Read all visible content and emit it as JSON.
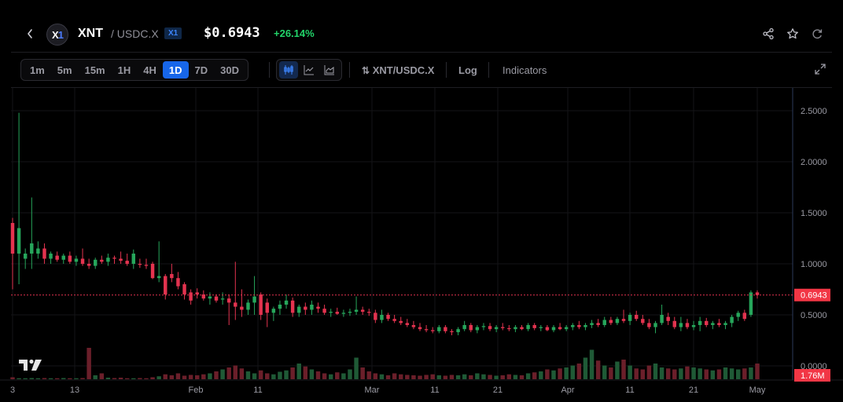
{
  "header": {
    "symbol": "XNT",
    "pair": "/ USDC.X",
    "chain_badge": "X1",
    "logo_text": "X",
    "logo_text_accent": "1",
    "price": "$0.6943",
    "change": "+26.14%",
    "icons": [
      "back-chevron-icon",
      "share-icon",
      "star-icon",
      "refresh-icon"
    ]
  },
  "toolbar": {
    "timeframes": [
      "1m",
      "5m",
      "15m",
      "1H",
      "4H",
      "1D",
      "7D",
      "30D"
    ],
    "active_timeframe": "1D",
    "chart_types": [
      "candles-icon",
      "line-icon",
      "area-icon"
    ],
    "pair_toggle": "XNT/USDC.X",
    "log_label": "Log",
    "indicators_label": "Indicators"
  },
  "colors": {
    "up": "#26a65b",
    "down": "#e3334f",
    "vol_up": "#1f5a36",
    "vol_down": "#6b1f2a",
    "accent": "#1766ea",
    "price_line": "#e3334f",
    "price_label_bg": "#f23645"
  },
  "chart_data": {
    "type": "candlestick",
    "title": "",
    "y_axis_labels": [
      "2.5000",
      "2.0000",
      "1.5000",
      "1.0000",
      "0.5000",
      "0.0000"
    ],
    "y_range": [
      0,
      2.7
    ],
    "x_axis_labels": [
      "3",
      "13",
      "Feb",
      "11",
      "Mar",
      "11",
      "21",
      "Apr",
      "11",
      "21",
      "May"
    ],
    "current_price_label": "0.6943",
    "current_price": 0.6943,
    "volume_label": "1.76M",
    "ohlc": [
      [
        1.4,
        1.45,
        0.75,
        1.1
      ],
      [
        1.1,
        2.48,
        0.8,
        1.35
      ],
      [
        1.05,
        1.15,
        0.95,
        1.1
      ],
      [
        1.1,
        1.65,
        0.95,
        1.2
      ],
      [
        1.1,
        1.22,
        1.05,
        1.15
      ],
      [
        1.15,
        1.2,
        1.0,
        1.05
      ],
      [
        1.05,
        1.12,
        1.0,
        1.1
      ],
      [
        1.08,
        1.12,
        1.02,
        1.04
      ],
      [
        1.04,
        1.1,
        1.0,
        1.08
      ],
      [
        1.08,
        1.12,
        1.0,
        1.02
      ],
      [
        1.02,
        1.08,
        0.98,
        1.05
      ],
      [
        1.05,
        1.15,
        0.98,
        1.0
      ],
      [
        1.0,
        1.05,
        0.95,
        0.98
      ],
      [
        0.98,
        1.06,
        0.95,
        1.04
      ],
      [
        1.04,
        1.08,
        1.0,
        1.02
      ],
      [
        1.02,
        1.1,
        0.98,
        1.06
      ],
      [
        1.06,
        1.08,
        1.0,
        1.05
      ],
      [
        1.05,
        1.12,
        1.0,
        1.03
      ],
      [
        1.03,
        1.1,
        0.98,
        1.0
      ],
      [
        1.0,
        1.14,
        0.95,
        1.1
      ],
      [
        1.0,
        1.05,
        0.96,
        0.99
      ],
      [
        0.99,
        1.05,
        0.95,
        0.98
      ],
      [
        1.0,
        1.02,
        0.85,
        0.86
      ],
      [
        0.86,
        1.22,
        0.82,
        0.88
      ],
      [
        0.88,
        0.9,
        0.65,
        0.7
      ],
      [
        0.9,
        1.0,
        0.82,
        0.86
      ],
      [
        0.86,
        0.92,
        0.75,
        0.78
      ],
      [
        0.8,
        0.82,
        0.65,
        0.7
      ],
      [
        0.72,
        0.75,
        0.6,
        0.64
      ],
      [
        0.72,
        0.76,
        0.66,
        0.7
      ],
      [
        0.7,
        0.74,
        0.64,
        0.66
      ],
      [
        0.66,
        0.72,
        0.6,
        0.68
      ],
      [
        0.68,
        0.7,
        0.62,
        0.64
      ],
      [
        0.65,
        0.72,
        0.6,
        0.66
      ],
      [
        0.66,
        0.7,
        0.4,
        0.62
      ],
      [
        0.62,
        1.02,
        0.45,
        0.58
      ],
      [
        0.58,
        0.75,
        0.48,
        0.55
      ],
      [
        0.55,
        0.65,
        0.5,
        0.62
      ],
      [
        0.62,
        0.88,
        0.5,
        0.68
      ],
      [
        0.7,
        0.72,
        0.45,
        0.5
      ],
      [
        0.62,
        0.66,
        0.38,
        0.52
      ],
      [
        0.52,
        0.58,
        0.44,
        0.56
      ],
      [
        0.56,
        0.64,
        0.5,
        0.6
      ],
      [
        0.6,
        0.7,
        0.56,
        0.64
      ],
      [
        0.64,
        0.67,
        0.48,
        0.52
      ],
      [
        0.52,
        0.6,
        0.48,
        0.58
      ],
      [
        0.58,
        0.62,
        0.5,
        0.55
      ],
      [
        0.55,
        0.64,
        0.5,
        0.6
      ],
      [
        0.58,
        0.62,
        0.52,
        0.56
      ],
      [
        0.56,
        0.6,
        0.5,
        0.52
      ],
      [
        0.52,
        0.56,
        0.48,
        0.53
      ],
      [
        0.53,
        0.57,
        0.5,
        0.51
      ],
      [
        0.51,
        0.55,
        0.48,
        0.52
      ],
      [
        0.52,
        0.56,
        0.49,
        0.53
      ],
      [
        0.53,
        0.68,
        0.5,
        0.55
      ],
      [
        0.55,
        0.58,
        0.5,
        0.53
      ],
      [
        0.53,
        0.56,
        0.49,
        0.52
      ],
      [
        0.52,
        0.55,
        0.42,
        0.45
      ],
      [
        0.45,
        0.55,
        0.42,
        0.5
      ],
      [
        0.5,
        0.52,
        0.44,
        0.46
      ],
      [
        0.46,
        0.5,
        0.42,
        0.44
      ],
      [
        0.44,
        0.48,
        0.4,
        0.42
      ],
      [
        0.42,
        0.46,
        0.38,
        0.4
      ],
      [
        0.4,
        0.44,
        0.36,
        0.38
      ],
      [
        0.38,
        0.42,
        0.34,
        0.36
      ],
      [
        0.36,
        0.4,
        0.33,
        0.35
      ],
      [
        0.35,
        0.38,
        0.32,
        0.34
      ],
      [
        0.34,
        0.4,
        0.32,
        0.38
      ],
      [
        0.38,
        0.4,
        0.32,
        0.34
      ],
      [
        0.34,
        0.36,
        0.3,
        0.33
      ],
      [
        0.33,
        0.38,
        0.3,
        0.36
      ],
      [
        0.36,
        0.44,
        0.34,
        0.4
      ],
      [
        0.4,
        0.42,
        0.33,
        0.35
      ],
      [
        0.35,
        0.4,
        0.32,
        0.38
      ],
      [
        0.38,
        0.42,
        0.35,
        0.39
      ],
      [
        0.39,
        0.42,
        0.34,
        0.36
      ],
      [
        0.36,
        0.4,
        0.33,
        0.38
      ],
      [
        0.38,
        0.42,
        0.35,
        0.37
      ],
      [
        0.37,
        0.4,
        0.34,
        0.36
      ],
      [
        0.36,
        0.4,
        0.33,
        0.38
      ],
      [
        0.38,
        0.4,
        0.35,
        0.36
      ],
      [
        0.36,
        0.42,
        0.34,
        0.4
      ],
      [
        0.4,
        0.42,
        0.35,
        0.37
      ],
      [
        0.37,
        0.4,
        0.34,
        0.38
      ],
      [
        0.38,
        0.4,
        0.34,
        0.35
      ],
      [
        0.35,
        0.4,
        0.33,
        0.38
      ],
      [
        0.38,
        0.42,
        0.35,
        0.36
      ],
      [
        0.36,
        0.4,
        0.34,
        0.38
      ],
      [
        0.38,
        0.42,
        0.35,
        0.4
      ],
      [
        0.4,
        0.44,
        0.36,
        0.38
      ],
      [
        0.38,
        0.42,
        0.35,
        0.4
      ],
      [
        0.4,
        0.45,
        0.37,
        0.42
      ],
      [
        0.42,
        0.46,
        0.38,
        0.4
      ],
      [
        0.4,
        0.48,
        0.38,
        0.45
      ],
      [
        0.45,
        0.48,
        0.4,
        0.42
      ],
      [
        0.42,
        0.48,
        0.4,
        0.46
      ],
      [
        0.46,
        0.55,
        0.42,
        0.44
      ],
      [
        0.44,
        0.52,
        0.4,
        0.5
      ],
      [
        0.5,
        0.54,
        0.44,
        0.46
      ],
      [
        0.46,
        0.5,
        0.4,
        0.42
      ],
      [
        0.42,
        0.46,
        0.36,
        0.38
      ],
      [
        0.38,
        0.44,
        0.32,
        0.42
      ],
      [
        0.42,
        0.6,
        0.4,
        0.5
      ],
      [
        0.48,
        0.52,
        0.4,
        0.44
      ],
      [
        0.44,
        0.48,
        0.36,
        0.38
      ],
      [
        0.38,
        0.48,
        0.34,
        0.42
      ],
      [
        0.42,
        0.46,
        0.36,
        0.38
      ],
      [
        0.38,
        0.44,
        0.35,
        0.4
      ],
      [
        0.4,
        0.48,
        0.34,
        0.44
      ],
      [
        0.44,
        0.47,
        0.38,
        0.4
      ],
      [
        0.4,
        0.44,
        0.36,
        0.42
      ],
      [
        0.42,
        0.46,
        0.38,
        0.4
      ],
      [
        0.4,
        0.44,
        0.36,
        0.42
      ],
      [
        0.42,
        0.5,
        0.38,
        0.48
      ],
      [
        0.48,
        0.54,
        0.44,
        0.52
      ],
      [
        0.52,
        0.55,
        0.44,
        0.46
      ],
      [
        0.5,
        0.74,
        0.48,
        0.72
      ],
      [
        0.72,
        0.74,
        0.66,
        0.6943
      ]
    ],
    "volume": [
      0.1,
      0.05,
      0.05,
      0.06,
      0.05,
      0.06,
      0.05,
      0.05,
      0.06,
      0.05,
      0.05,
      0.06,
      1.6,
      0.2,
      0.3,
      0.08,
      0.06,
      0.08,
      0.05,
      0.05,
      0.06,
      0.05,
      0.1,
      0.15,
      0.25,
      0.2,
      0.3,
      0.18,
      0.22,
      0.2,
      0.25,
      0.3,
      0.4,
      0.5,
      0.6,
      0.7,
      0.55,
      0.4,
      0.3,
      0.45,
      0.3,
      0.25,
      0.38,
      0.45,
      0.6,
      0.8,
      0.65,
      0.5,
      0.4,
      0.3,
      0.25,
      0.35,
      0.3,
      0.5,
      1.1,
      0.6,
      0.4,
      0.3,
      0.25,
      0.2,
      0.3,
      0.25,
      0.22,
      0.2,
      0.18,
      0.22,
      0.25,
      0.2,
      0.18,
      0.22,
      0.2,
      0.25,
      0.2,
      0.3,
      0.25,
      0.22,
      0.18,
      0.2,
      0.25,
      0.22,
      0.2,
      0.3,
      0.35,
      0.4,
      0.5,
      0.45,
      0.55,
      0.6,
      0.7,
      0.8,
      1.1,
      1.5,
      0.95,
      0.7,
      0.6,
      0.9,
      1.0,
      0.7,
      0.55,
      0.5,
      0.7,
      0.8,
      0.6,
      0.55,
      0.5,
      0.55,
      0.65,
      0.6,
      0.55,
      0.5,
      0.45,
      0.5,
      0.6,
      0.55,
      0.5,
      0.55,
      0.6,
      0.8,
      0.7,
      0.5
    ]
  }
}
